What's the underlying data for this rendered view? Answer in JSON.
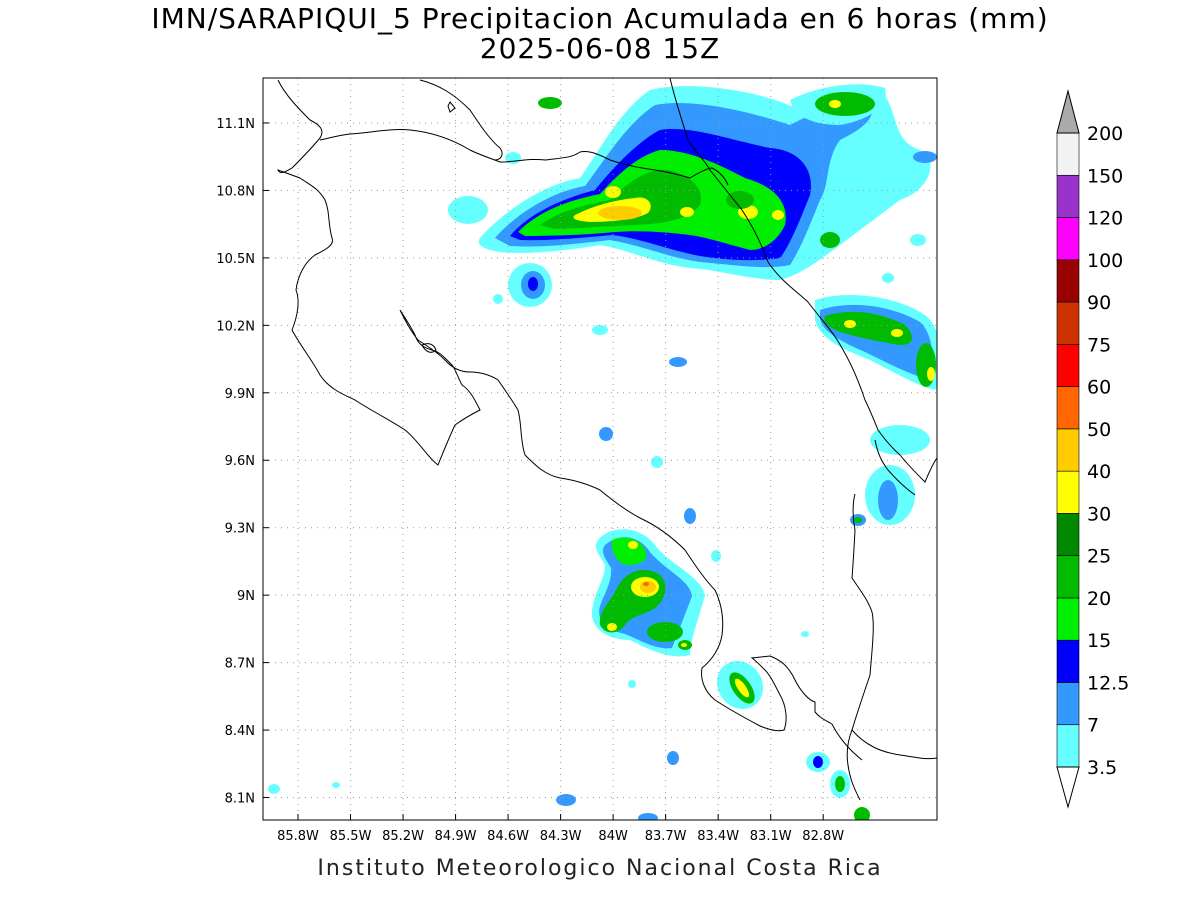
{
  "title": "IMN/SARAPIQUI_5 Precipitacion Acumulada en 6 horas (mm)",
  "subtitle": "2025-06-08 15Z",
  "footer": "Instituto Meteorologico Nacional Costa Rica",
  "map": {
    "lon_range": [
      -86.0,
      -82.15
    ],
    "lat_range": [
      8.0,
      11.3
    ],
    "lon_ticks": [
      "85.8W",
      "85.5W",
      "85.2W",
      "84.9W",
      "84.6W",
      "84.3W",
      "84W",
      "83.7W",
      "83.4W",
      "83.1W",
      "82.8W"
    ],
    "lon_values": [
      -85.8,
      -85.5,
      -85.2,
      -84.9,
      -84.6,
      -84.3,
      -84.0,
      -83.7,
      -83.4,
      -83.1,
      -82.8
    ],
    "lat_ticks": [
      "11.1N",
      "10.8N",
      "10.5N",
      "10.2N",
      "9.9N",
      "9.6N",
      "9.3N",
      "9N",
      "8.7N",
      "8.4N",
      "8.1N"
    ],
    "lat_values": [
      11.1,
      10.8,
      10.5,
      10.2,
      9.9,
      9.6,
      9.3,
      9.0,
      8.7,
      8.4,
      8.1
    ],
    "grid": true
  },
  "legend": {
    "labels": [
      "3.5",
      "7",
      "12.5",
      "15",
      "20",
      "25",
      "30",
      "40",
      "50",
      "60",
      "75",
      "90",
      "100",
      "120",
      "150",
      "200"
    ],
    "colors": [
      "#66ffff",
      "#3399ff",
      "#0000ff",
      "#00ee00",
      "#00bb00",
      "#008800",
      "#ffff00",
      "#ffcc00",
      "#ff6600",
      "#ff0000",
      "#cc3300",
      "#990000",
      "#ff00ff",
      "#9933cc",
      "#f2f2f2",
      "#aaaaaa"
    ]
  },
  "precip_cells": [
    {
      "lon": -84.05,
      "lat": 10.68,
      "level": 6
    },
    {
      "lon": -84.05,
      "lat": 10.72,
      "level": 6
    },
    {
      "lon": -84.1,
      "lat": 10.7,
      "level": 6
    },
    {
      "lon": -84.28,
      "lat": 10.68,
      "level": 6
    },
    {
      "lon": -83.85,
      "lat": 10.78,
      "level": 5
    },
    {
      "lon": -83.5,
      "lat": 10.6,
      "level": 5
    },
    {
      "lon": -83.5,
      "lat": 10.67,
      "level": 6
    },
    {
      "lon": -83.38,
      "lat": 10.7,
      "level": 5
    },
    {
      "lon": -83.15,
      "lat": 11.22,
      "level": 6
    },
    {
      "lon": -83.0,
      "lat": 11.2,
      "level": 6
    },
    {
      "lon": -83.05,
      "lat": 10.2,
      "level": 6
    },
    {
      "lon": -82.9,
      "lat": 10.18,
      "level": 5
    },
    {
      "lon": -82.35,
      "lat": 10.08,
      "level": 5
    },
    {
      "lon": -83.95,
      "lat": 9.06,
      "level": 8
    },
    {
      "lon": -83.97,
      "lat": 9.06,
      "level": 7
    },
    {
      "lon": -84.05,
      "lat": 9.22,
      "level": 5
    },
    {
      "lon": -83.55,
      "lat": 8.62,
      "level": 6
    },
    {
      "lon": -84.25,
      "lat": 8.85,
      "level": 5
    },
    {
      "lon": -84.47,
      "lat": 10.62,
      "level": 5
    },
    {
      "lon": -84.57,
      "lat": 10.38,
      "level": 2
    }
  ]
}
